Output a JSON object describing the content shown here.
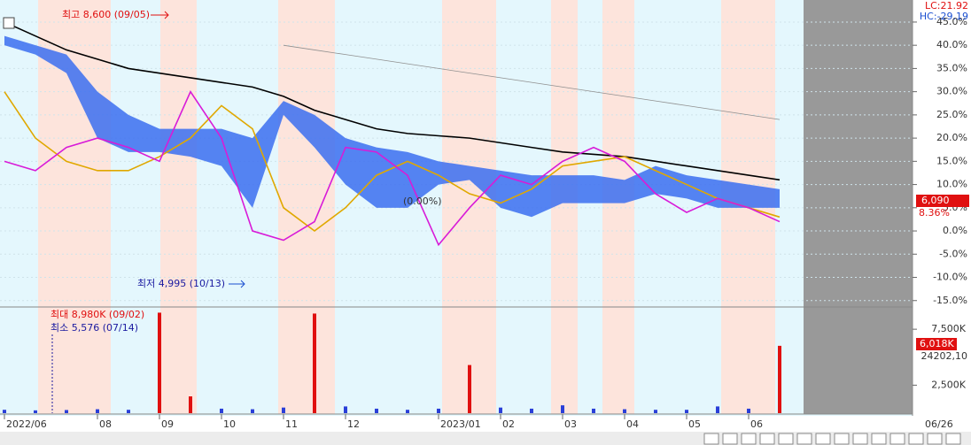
{
  "chart_data": [
    {
      "type": "line",
      "categories": [
        "2022/06",
        null,
        null,
        "08",
        null,
        "09",
        null,
        "10",
        null,
        "11",
        null,
        "12",
        null,
        null,
        "2023/01",
        null,
        "02",
        null,
        "03",
        null,
        "04",
        null,
        "05",
        null,
        "06",
        null
      ],
      "ylim": [
        -16,
        48.8
      ],
      "yticks": [
        {
          "value": 45,
          "label": "45.0%"
        },
        {
          "value": 40,
          "label": "40.0%"
        },
        {
          "value": 35,
          "label": "35.0%"
        },
        {
          "value": 30,
          "label": "30.0%"
        },
        {
          "value": 25,
          "label": "25.0%"
        },
        {
          "value": 20,
          "label": "20.0%"
        },
        {
          "value": 15,
          "label": "15.0%"
        },
        {
          "value": 10,
          "label": "10.0%"
        },
        {
          "value": 5,
          "label": "5.0%"
        },
        {
          "value": 0,
          "label": "0.0%"
        },
        {
          "value": -5,
          "label": "-5.0%"
        },
        {
          "value": -10,
          "label": "-10.0%"
        },
        {
          "value": -15,
          "label": "-15.0%"
        }
      ],
      "band": {
        "color": "#3b6ff0",
        "upper": [
          42,
          40,
          38,
          30,
          25,
          22,
          22,
          22,
          20,
          28,
          25,
          20,
          18,
          17,
          15,
          14,
          13,
          12,
          12,
          12,
          11,
          14,
          12,
          11,
          10,
          9
        ],
        "lower": [
          40,
          38,
          34,
          20,
          17,
          17,
          16,
          14,
          5,
          25,
          18,
          10,
          5,
          5,
          10,
          11,
          5,
          3,
          6,
          6,
          6,
          8,
          7,
          5,
          5,
          5
        ]
      },
      "series": [
        {
          "color": "#000000",
          "values": [
            45,
            42,
            39,
            37,
            35,
            34,
            33,
            32,
            31,
            29,
            26,
            24,
            22,
            21,
            20.5,
            20,
            19,
            18,
            17,
            16.5,
            16,
            15,
            14,
            13,
            12,
            11
          ]
        },
        {
          "color": "#e0a800",
          "values": [
            30,
            20,
            15,
            13,
            13,
            16,
            20,
            27,
            22,
            5,
            0,
            5,
            12,
            15,
            12,
            8,
            6,
            9,
            14,
            15,
            16,
            13,
            10,
            7,
            5,
            3
          ]
        },
        {
          "color": "#d81bd8",
          "values": [
            15,
            13,
            18,
            20,
            18,
            15,
            30,
            20,
            0,
            -2,
            2,
            18,
            17,
            12,
            -3,
            5,
            12,
            10,
            15,
            18,
            15,
            8,
            4,
            7,
            5,
            2
          ]
        },
        {
          "color": "#909090",
          "values": [
            null,
            null,
            null,
            null,
            null,
            null,
            null,
            null,
            null,
            40,
            39,
            38,
            37,
            36,
            35,
            34,
            33,
            32,
            31,
            30,
            29,
            28,
            27,
            26,
            25,
            24
          ]
        }
      ],
      "annotations": [
        "최고 8,600 (09/05)",
        "최저 4,995 (10/13)",
        "(0.00%)",
        "LC:21.92",
        "HC:-29.19",
        "8.36%"
      ],
      "last_price": "6,090",
      "end_date": "06/26"
    },
    {
      "type": "bar",
      "color": "#e01010",
      "values": [
        300,
        250,
        280,
        350,
        300,
        8980,
        1500,
        400,
        350,
        500,
        8900,
        600,
        400,
        300,
        400,
        4300,
        500,
        400,
        700,
        400,
        350,
        300,
        300,
        600,
        400,
        6018
      ],
      "ylim": [
        0,
        9250
      ],
      "yticks": [
        {
          "value": 7500,
          "label": "7,500K"
        },
        {
          "value": 2500,
          "label": "2,500K"
        }
      ],
      "annotations": [
        "최대 8,980K (09/02)",
        "최소 5,576 (07/14)",
        "24202,10"
      ],
      "last_volume": "6,018K"
    }
  ]
}
